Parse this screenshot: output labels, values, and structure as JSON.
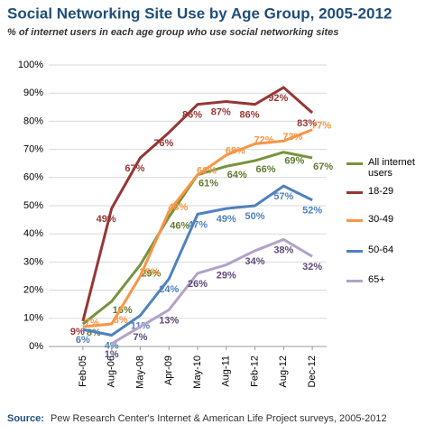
{
  "chart_data": {
    "type": "line",
    "title": "Social Networking Site Use by Age Group, 2005-2012",
    "subtitle": "% of internet users in each age group who use social networking sites",
    "categories": [
      "Feb-05",
      "Aug-06",
      "May-08",
      "Apr-09",
      "May-10",
      "Aug-11",
      "Feb-12",
      "Aug-12",
      "Dec-12"
    ],
    "series": [
      {
        "name": "All internet users",
        "color": "#77933c",
        "label_color": "#5f7a2e",
        "values": [
          8,
          16,
          29,
          46,
          61,
          64,
          66,
          69,
          67
        ],
        "value_labels": [
          "8%",
          "16%",
          "29%",
          "46%",
          "61%",
          "64%",
          "66%",
          "69%",
          "67%"
        ]
      },
      {
        "name": "18-29",
        "color": "#953735",
        "label_color": "#953735",
        "values": [
          9,
          49,
          67,
          76,
          86,
          87,
          86,
          92,
          83
        ],
        "value_labels": [
          "9%",
          "49%",
          "67%",
          "76%",
          "86%",
          "87%",
          "86%",
          "92%",
          "83%"
        ]
      },
      {
        "name": "30-49",
        "color": "#f79646",
        "label_color": "#f79646",
        "values": [
          7,
          8,
          25,
          48,
          61,
          68,
          72,
          73,
          77
        ],
        "value_labels": [
          "7%",
          "8%",
          "25%",
          "48%",
          "61%",
          "68%",
          "72%",
          "73%",
          "77%"
        ]
      },
      {
        "name": "50-64",
        "color": "#4f81bd",
        "label_color": "#4f81bd",
        "values": [
          6,
          4,
          11,
          24,
          47,
          49,
          50,
          57,
          52
        ],
        "value_labels": [
          "6%",
          "4%",
          "11%",
          "24%",
          "47%",
          "49%",
          "50%",
          "57%",
          "52%"
        ]
      },
      {
        "name": "65+",
        "color": "#b3a2c7",
        "label_color": "#5f497a",
        "values": [
          null,
          1,
          7,
          13,
          26,
          29,
          34,
          38,
          32
        ],
        "value_labels": [
          null,
          "1%",
          "7%",
          "13%",
          "26%",
          "29%",
          "34%",
          "38%",
          "32%"
        ]
      }
    ],
    "ylim": [
      0,
      100
    ],
    "yticks": [
      {
        "value": 0,
        "label": "0%"
      },
      {
        "value": 10,
        "label": "10%"
      },
      {
        "value": 20,
        "label": "20%"
      },
      {
        "value": 30,
        "label": "30%"
      },
      {
        "value": 40,
        "label": "40%"
      },
      {
        "value": 50,
        "label": "50%"
      },
      {
        "value": 60,
        "label": "60%"
      },
      {
        "value": 70,
        "label": "70%"
      },
      {
        "value": 80,
        "label": "80%"
      },
      {
        "value": 90,
        "label": "90%"
      },
      {
        "value": 100,
        "label": "100%"
      }
    ],
    "grid": true,
    "legend": "right",
    "source_label": "Source:",
    "source": "Pew Research Center's Internet & American Life Project surveys, 2005-2012"
  }
}
